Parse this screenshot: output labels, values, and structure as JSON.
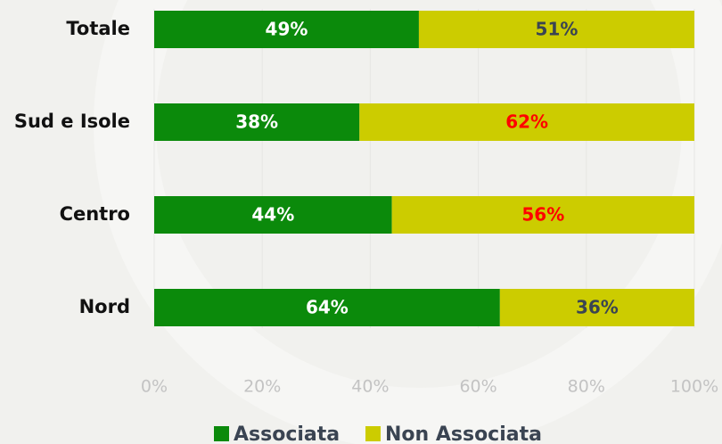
{
  "chart_data": {
    "type": "stacked-barh",
    "categories": [
      "Totale",
      "Sud e Isole",
      "Centro",
      "Nord"
    ],
    "series": [
      {
        "name": "Associata",
        "color": "#0b8a0b",
        "values": [
          49,
          38,
          44,
          64
        ],
        "value_labels": [
          "49%",
          "38%",
          "44%",
          "64%"
        ],
        "label_colors": [
          "#ffffff",
          "#ffffff",
          "#ffffff",
          "#ffffff"
        ]
      },
      {
        "name": "Non Associata",
        "color": "#cccc00",
        "values": [
          51,
          62,
          56,
          36
        ],
        "value_labels": [
          "51%",
          "62%",
          "56%",
          "36%"
        ],
        "label_colors": [
          "#3a4452",
          "#ff0000",
          "#ff0000",
          "#3a4452"
        ]
      }
    ],
    "xlim": [
      0,
      100
    ],
    "xticks": [
      {
        "value": 0,
        "label": "0%"
      },
      {
        "value": 20,
        "label": "20%"
      },
      {
        "value": 40,
        "label": "40%"
      },
      {
        "value": 60,
        "label": "60%"
      },
      {
        "value": 80,
        "label": "80%"
      },
      {
        "value": 100,
        "label": "100%"
      }
    ],
    "grid": true,
    "legend": "bottom"
  }
}
